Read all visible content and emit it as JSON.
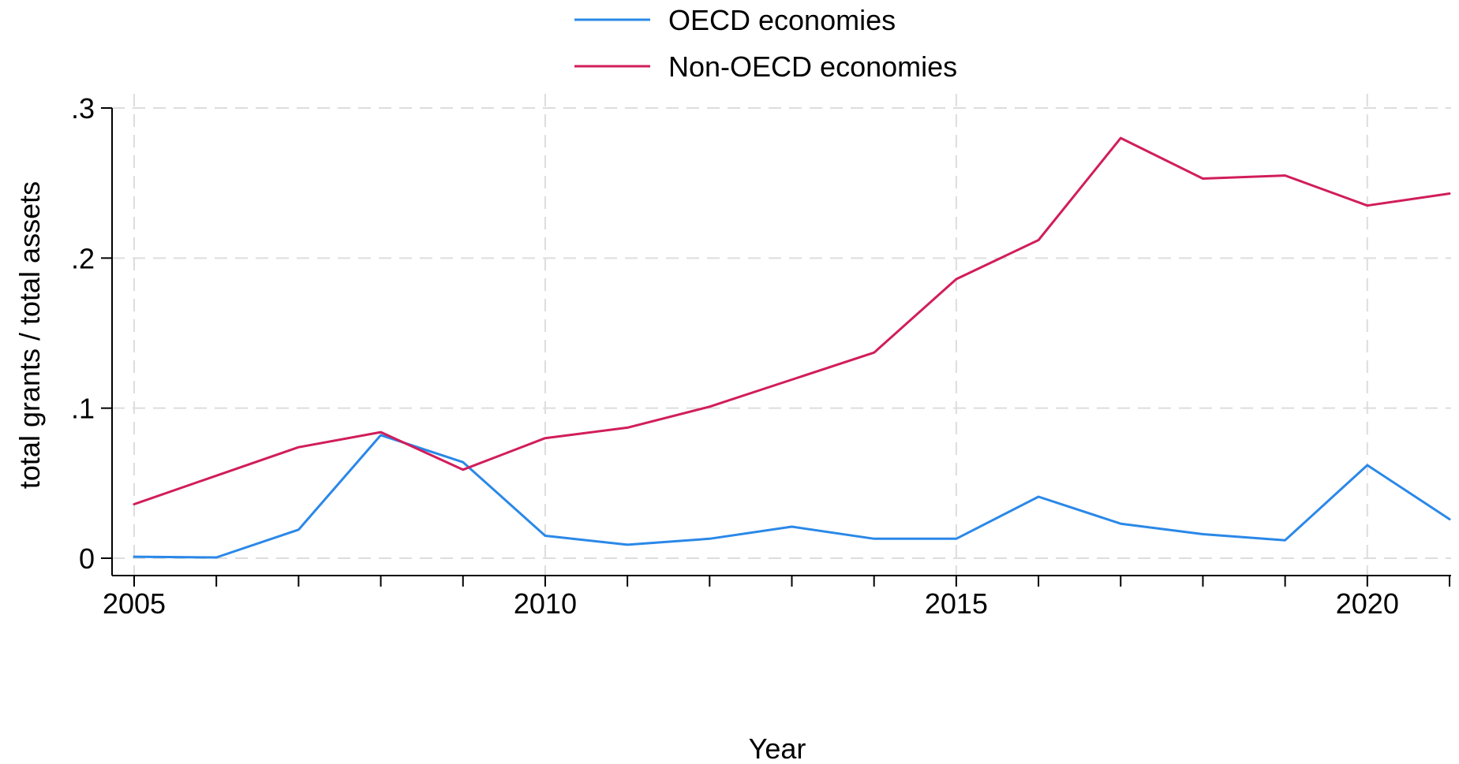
{
  "chart_data": {
    "type": "line",
    "title": "",
    "xlabel": "Year",
    "ylabel": "total grants / total assets",
    "x": [
      2005,
      2006,
      2007,
      2008,
      2009,
      2010,
      2011,
      2012,
      2013,
      2014,
      2015,
      2016,
      2017,
      2018,
      2019,
      2020,
      2021
    ],
    "xlim": [
      2005,
      2021
    ],
    "ylim": [
      0,
      0.3
    ],
    "xticks": [
      {
        "value": 2005,
        "label": "2005"
      },
      {
        "value": 2010,
        "label": "2010"
      },
      {
        "value": 2015,
        "label": "2015"
      },
      {
        "value": 2020,
        "label": "2020"
      }
    ],
    "yticks": [
      {
        "value": 0,
        "label": "0"
      },
      {
        "value": 0.1,
        "label": ".1"
      },
      {
        "value": 0.2,
        "label": ".2"
      },
      {
        "value": 0.3,
        "label": ".3"
      }
    ],
    "grid": true,
    "legend_position": "top-center",
    "series": [
      {
        "name": "OECD economies",
        "color": "#2a88e8",
        "values": [
          0.001,
          0.0005,
          0.019,
          0.082,
          0.064,
          0.015,
          0.009,
          0.013,
          0.021,
          0.013,
          0.013,
          0.041,
          0.023,
          0.016,
          0.012,
          0.062,
          0.026
        ]
      },
      {
        "name": "Non-OECD economies",
        "color": "#d11d5b",
        "values": [
          0.036,
          0.055,
          0.074,
          0.084,
          0.059,
          0.08,
          0.087,
          0.101,
          0.119,
          0.137,
          0.186,
          0.212,
          0.28,
          0.253,
          0.255,
          0.235,
          0.243
        ]
      }
    ]
  }
}
